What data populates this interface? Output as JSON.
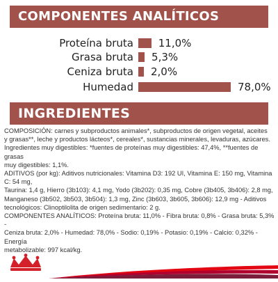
{
  "analytic": {
    "title": "COMPONENTES ANALÍTICOS",
    "rows": [
      {
        "label": "Proteína bruta",
        "value": "11,0%",
        "percent": 11.0
      },
      {
        "label": "Grasa bruta",
        "value": "5,3%",
        "percent": 5.3
      },
      {
        "label": "Ceniza bruta",
        "value": "2,0%",
        "percent": 2.0
      },
      {
        "label": "Humedad",
        "value": "78,0%",
        "percent": 78.0
      }
    ]
  },
  "ingredients": {
    "title": "INGREDIENTES",
    "lines": [
      "COMPOSICIÓN: carnes y subproductos animales*, subproductos de origen vegetal, aceites",
      "y grasas**, leche y productos lácteos*, cereales*, sustancias minerales, levaduras, azúcares.",
      "Ingredientes muy digestibles: *fuentes de proteínas muy digestibles: 47,4%, **fuentes de grasas",
      "muy digestibles: 1,1%.",
      "ADITIVOS (por kg): Aditivos nutricionales: Vitamina D3: 192 UI, Vitamina E: 150 mg, Vitamina C: 54 mg,",
      "Taurina: 1,4 g, Hierro (3b103): 4,1 mg, Yodo (3b202): 0,35 mg, Cobre (3b405, 3b406): 2,8 mg,",
      "Manganeso (3b502, 3b503, 3b504): 1,3 mg, Zinc (3b603, 3b605, 3b606): 12,9 mg - Aditivos",
      "tecnológicos: Clinoptilolita de origen sedimentario: 2 g.",
      "COMPONENTES ANALÍTICOS: Proteína bruta: 11,0% - Fibra bruta: 0,8% - Grasa bruta: 5,3% -",
      "Ceniza bruta: 2,0% - Humedad: 78,0% - Sodio: 0,19% - Potasio: 0,19% - Calcio: 0,32% - Energía",
      "metabolizable: 997 kcal/kg."
    ]
  },
  "colors": {
    "accent": "#a0524b",
    "logo_red": "#d3202a",
    "stripe_1": "#e30613",
    "stripe_2": "#b1002d",
    "stripe_3": "#7c1d3b"
  },
  "icons": {
    "logo": "royal-canin-crown-logo"
  }
}
